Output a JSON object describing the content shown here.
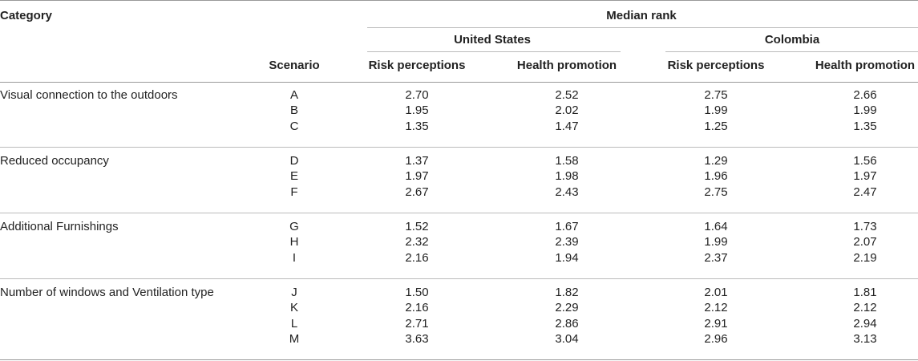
{
  "header": {
    "category": "Category",
    "median_rank": "Median rank",
    "scenario": "Scenario",
    "countries": [
      "United States",
      "Colombia"
    ],
    "measures": [
      "Risk perceptions",
      "Health promotion",
      "Risk perceptions",
      "Health promotion"
    ]
  },
  "groups": [
    {
      "category": "Visual connection to the outdoors",
      "rows": [
        {
          "scenario": "A",
          "us_risk": "2.70",
          "us_health": "2.52",
          "co_risk": "2.75",
          "co_health": "2.66"
        },
        {
          "scenario": "B",
          "us_risk": "1.95",
          "us_health": "2.02",
          "co_risk": "1.99",
          "co_health": "1.99"
        },
        {
          "scenario": "C",
          "us_risk": "1.35",
          "us_health": "1.47",
          "co_risk": "1.25",
          "co_health": "1.35"
        }
      ]
    },
    {
      "category": "Reduced occupancy",
      "rows": [
        {
          "scenario": "D",
          "us_risk": "1.37",
          "us_health": "1.58",
          "co_risk": "1.29",
          "co_health": "1.56"
        },
        {
          "scenario": "E",
          "us_risk": "1.97",
          "us_health": "1.98",
          "co_risk": "1.96",
          "co_health": "1.97"
        },
        {
          "scenario": "F",
          "us_risk": "2.67",
          "us_health": "2.43",
          "co_risk": "2.75",
          "co_health": "2.47"
        }
      ]
    },
    {
      "category": "Additional Furnishings",
      "rows": [
        {
          "scenario": "G",
          "us_risk": "1.52",
          "us_health": "1.67",
          "co_risk": "1.64",
          "co_health": "1.73"
        },
        {
          "scenario": "H",
          "us_risk": "2.32",
          "us_health": "2.39",
          "co_risk": "1.99",
          "co_health": "2.07"
        },
        {
          "scenario": "I",
          "us_risk": "2.16",
          "us_health": "1.94",
          "co_risk": "2.37",
          "co_health": "2.19"
        }
      ]
    },
    {
      "category": "Number of windows and Ventilation type",
      "rows": [
        {
          "scenario": "J",
          "us_risk": "1.50",
          "us_health": "1.82",
          "co_risk": "2.01",
          "co_health": "1.81"
        },
        {
          "scenario": "K",
          "us_risk": "2.16",
          "us_health": "2.29",
          "co_risk": "2.12",
          "co_health": "2.12"
        },
        {
          "scenario": "L",
          "us_risk": "2.71",
          "us_health": "2.86",
          "co_risk": "2.91",
          "co_health": "2.94"
        },
        {
          "scenario": "M",
          "us_risk": "3.63",
          "us_health": "3.04",
          "co_risk": "2.96",
          "co_health": "3.13"
        }
      ]
    }
  ]
}
